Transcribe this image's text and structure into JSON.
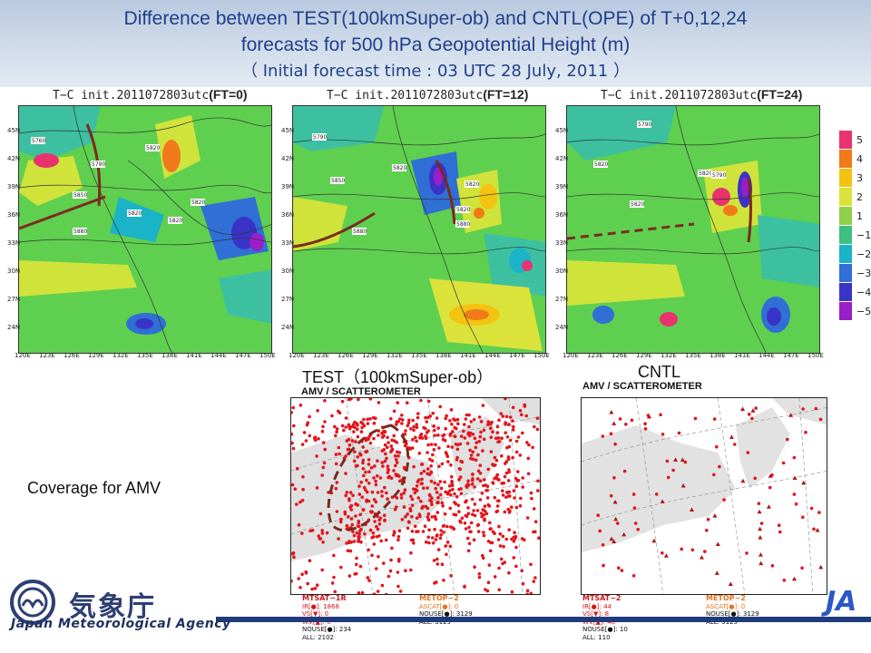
{
  "header": {
    "title_line1": "Difference between TEST(100kmSuper-ob) and CNTL(OPE) of T+0,12,24",
    "title_line2": "forecasts for 500 hPa Geopotential Height (m)",
    "title_line3": "（ Initial forecast time : 03 UTC 28 July, 2011 ）"
  },
  "panels": [
    {
      "prefix": "T−C init.2011072803utc",
      "ft": "(FT=0)"
    },
    {
      "prefix": "T−C init.2011072803utc",
      "ft": "(FT=12)"
    },
    {
      "prefix": "T−C init.2011072803utc",
      "ft": "(FT=24)"
    }
  ],
  "map_axes": {
    "lat": [
      "45N",
      "42N",
      "39N",
      "36N",
      "33N",
      "30N",
      "27N",
      "24N"
    ],
    "lon": [
      "120E",
      "123E",
      "126E",
      "129E",
      "132E",
      "135E",
      "138E",
      "141E",
      "144E",
      "147E",
      "150E"
    ]
  },
  "contour_labels": {
    "ft0": [
      "5760",
      "5820",
      "5790",
      "5850",
      "5820",
      "5820",
      "5820",
      "5880"
    ],
    "ft12": [
      "5790",
      "5820",
      "5850",
      "5820",
      "5880",
      "5820",
      "5880"
    ],
    "ft24": [
      "5790",
      "5820",
      "5820",
      "5820",
      "5790"
    ]
  },
  "colorbar": {
    "labels": [
      "5",
      "4",
      "3",
      "2",
      "1",
      "−1",
      "−2",
      "−3",
      "−4",
      "−5"
    ],
    "colors": [
      "#e8336e",
      "#f07a1a",
      "#f2c30f",
      "#dbe33a",
      "#8fd14a",
      "#3fbf7f",
      "#1ab3c8",
      "#2f6fd6",
      "#3a33c8",
      "#9a1fc8"
    ]
  },
  "coverage_label": "Coverage for AMV",
  "test_label": "TEST（100kmSuper-ob）",
  "cntl_label": "CNTL",
  "amv_test": {
    "title": "AMV / SCATTEROMETER",
    "left_head": "MTSAT−1R",
    "left_lines": [
      "IR[●]: 1868",
      "VS[▼]: 0",
      "WV[▲]: 0",
      "NOUSE[●]: 234",
      "ALL: 2102"
    ],
    "right_head": "METOP−2",
    "right_lines": [
      "ASCAT[●]: 0",
      "NOUSE[●]: 3129",
      "ALL: 3129"
    ]
  },
  "amv_cntl": {
    "title": "AMV / SCATTEROMETER",
    "left_head": "MTSAT−2",
    "left_lines": [
      "IR[●]: 44",
      "VS[▼]: 8",
      "WV[▲]: 48",
      "NOUSE[●]: 10",
      "ALL: 110"
    ],
    "right_head": "METOP−2",
    "right_lines": [
      "ASCAT[●]: 0",
      "NOUSE[●]: 3129",
      "ALL: 3129"
    ]
  },
  "logo": {
    "kanji": "気象庁",
    "name": "Japan Meteorological Agency",
    "corner_text": "JA"
  },
  "colors": {
    "title_blue": "#1f3f8a",
    "field_green": "#5fcf4f",
    "field_yellow": "#cfe33a",
    "field_cyan": "#3cc0a0",
    "marker_red": "#e4141b",
    "footer_navy": "#1e3c7b"
  }
}
